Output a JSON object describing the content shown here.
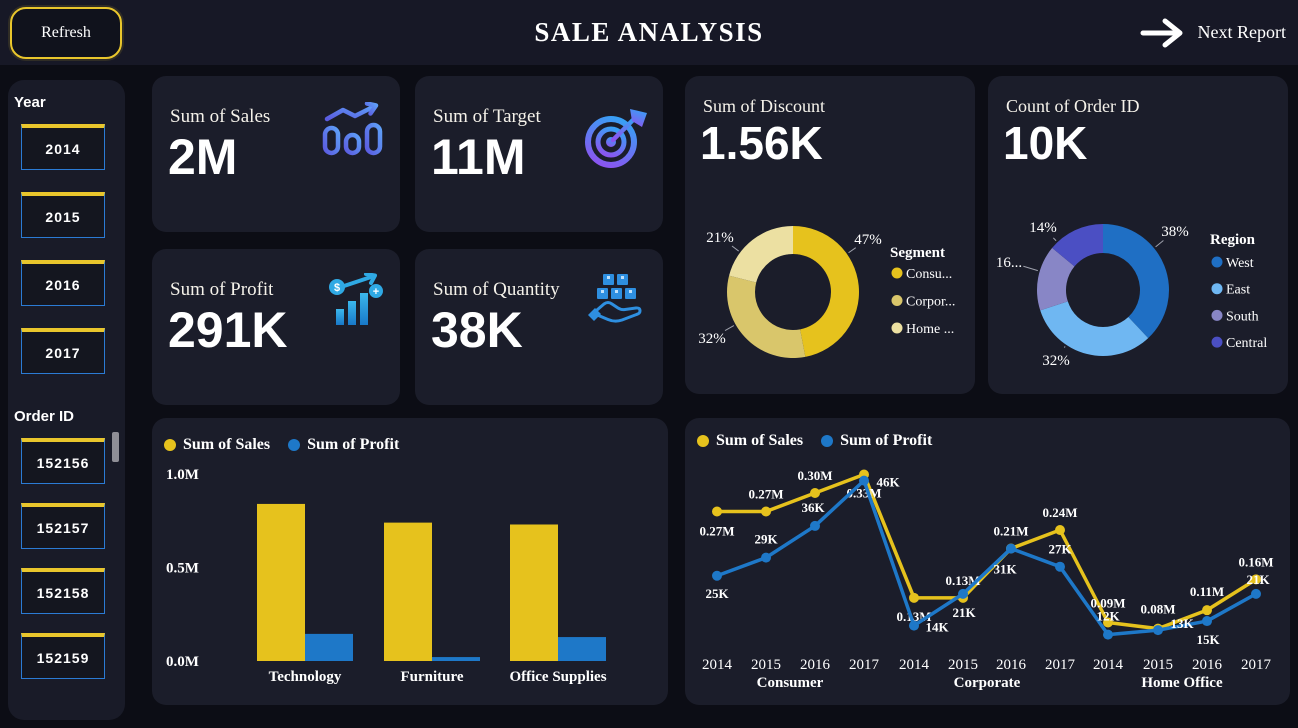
{
  "topbar": {
    "refresh_label": "Refresh",
    "title": "SALE ANALYSIS",
    "next_report_label": "Next Report"
  },
  "sidebar": {
    "year": {
      "label": "Year",
      "options": [
        "2014",
        "2015",
        "2016",
        "2017"
      ]
    },
    "order_id": {
      "label": "Order ID",
      "options": [
        "152156",
        "152157",
        "152158",
        "152159"
      ]
    }
  },
  "kpis": [
    {
      "title": "Sum of Sales",
      "value": "2M",
      "icon": "bar-trend-icon"
    },
    {
      "title": "Sum of Target",
      "value": "11M",
      "icon": "target-icon"
    },
    {
      "title": "Sum of Profit",
      "value": "291K",
      "icon": "profit-bars-icon"
    },
    {
      "title": "Sum of Quantity",
      "value": "38K",
      "icon": "boxes-hand-icon"
    }
  ],
  "colors": {
    "accent_yellow": "#E9C62C",
    "accent_blue": "#1E78C8",
    "card_bg": "#1B1D2A",
    "page_bg": "#0C0D15",
    "topbar_bg": "#171826",
    "slicer_border_blue": "#2B7BD4"
  },
  "chart_data": [
    {
      "type": "pie",
      "id": "discount-donut",
      "title": "Sum of Discount",
      "value": "1.56K",
      "legend_title": "Segment",
      "legend_position": "right",
      "labels": [
        "Consumer",
        "Corporate",
        "Home Office"
      ],
      "legend_labels": [
        "Consu...",
        "Corpor...",
        "Home ..."
      ],
      "values_pct": [
        47,
        32,
        21
      ],
      "display_pct": [
        "47%",
        "32%",
        "21%"
      ],
      "colors": [
        "#E6C21D",
        "#D9C66B",
        "#ECE0A2"
      ],
      "label_pos": [
        [
          183,
          163
        ],
        [
          27,
          262
        ],
        [
          35,
          161
        ]
      ]
    },
    {
      "type": "pie",
      "id": "region-donut",
      "title": "Count of Order ID",
      "value": "10K",
      "legend_title": "Region",
      "legend_position": "right",
      "labels": [
        "West",
        "East",
        "South",
        "Central"
      ],
      "legend_labels": [
        "West",
        "East",
        "South",
        "Central"
      ],
      "values_pct": [
        38,
        32,
        16,
        14
      ],
      "display_pct": [
        "38%",
        "32%",
        "16...",
        "14%"
      ],
      "colors": [
        "#1F6FC4",
        "#6FB7F2",
        "#8886C6",
        "#4B4FC3"
      ],
      "label_pos": [
        [
          187,
          155
        ],
        [
          68,
          284
        ],
        [
          21,
          186
        ],
        [
          55,
          151
        ]
      ]
    },
    {
      "type": "bar",
      "id": "category-bar",
      "categories": [
        "Technology",
        "Furniture",
        "Office Supplies"
      ],
      "series": [
        {
          "name": "Sum of Sales",
          "color": "#E6C21D",
          "values": [
            0.84,
            0.74,
            0.73
          ]
        },
        {
          "name": "Sum of Profit",
          "color": "#1E78C8",
          "values": [
            0.145,
            0.021,
            0.128
          ]
        }
      ],
      "yticks": [
        {
          "label": "1.0M",
          "value": 1.0
        },
        {
          "label": "0.5M",
          "value": 0.5
        },
        {
          "label": "0.0M",
          "value": 0.0
        }
      ],
      "ylim": [
        0,
        1.0
      ],
      "unit": "M",
      "grid": false,
      "legend_position": "top-left"
    },
    {
      "type": "line",
      "id": "segment-year-line",
      "x": [
        "2014",
        "2015",
        "2016",
        "2017",
        "2014",
        "2015",
        "2016",
        "2017",
        "2014",
        "2015",
        "2016",
        "2017"
      ],
      "groups": [
        "Consumer",
        "Corporate",
        "Home Office"
      ],
      "series": [
        {
          "name": "Sum of Sales",
          "unit": "M",
          "color": "#E6C21D",
          "values": [
            0.27,
            0.27,
            0.3,
            0.33,
            0.13,
            0.13,
            0.21,
            0.24,
            0.09,
            0.08,
            0.11,
            0.16
          ],
          "labels": [
            "0.27M",
            "0.27M",
            "0.30M",
            "0.33M",
            "0.13M",
            "0.13M",
            "0.21M",
            "0.24M",
            "0.09M",
            "0.08M",
            "0.11M",
            "0.16M"
          ],
          "label_offsets": [
            [
              0,
              20
            ],
            [
              0,
              -17
            ],
            [
              0,
              -17
            ],
            [
              0,
              19
            ],
            [
              0,
              19
            ],
            [
              0,
              -17
            ],
            [
              0,
              -17
            ],
            [
              0,
              -17
            ],
            [
              0,
              -19
            ],
            [
              0,
              -19
            ],
            [
              0,
              -18
            ],
            [
              0,
              -17
            ]
          ]
        },
        {
          "name": "Sum of Profit",
          "unit": "K",
          "color": "#1E78C8",
          "values": [
            25,
            29,
            36,
            46,
            14,
            21,
            31,
            27,
            12,
            13,
            15,
            21
          ],
          "labels": [
            "25K",
            "29K",
            "36K",
            "46K",
            "14K",
            "21K",
            "31K",
            "27K",
            "12K",
            "13K",
            "15K",
            "21K"
          ],
          "label_offsets": [
            [
              0,
              18
            ],
            [
              0,
              -18
            ],
            [
              -2,
              -18
            ],
            [
              24,
              2
            ],
            [
              23,
              2
            ],
            [
              1,
              19
            ],
            [
              -6,
              21
            ],
            [
              0,
              -17
            ],
            [
              0,
              -18
            ],
            [
              24,
              -6
            ],
            [
              1,
              19
            ],
            [
              2,
              -14
            ]
          ]
        }
      ],
      "grid": false,
      "legend_position": "top-left"
    }
  ]
}
